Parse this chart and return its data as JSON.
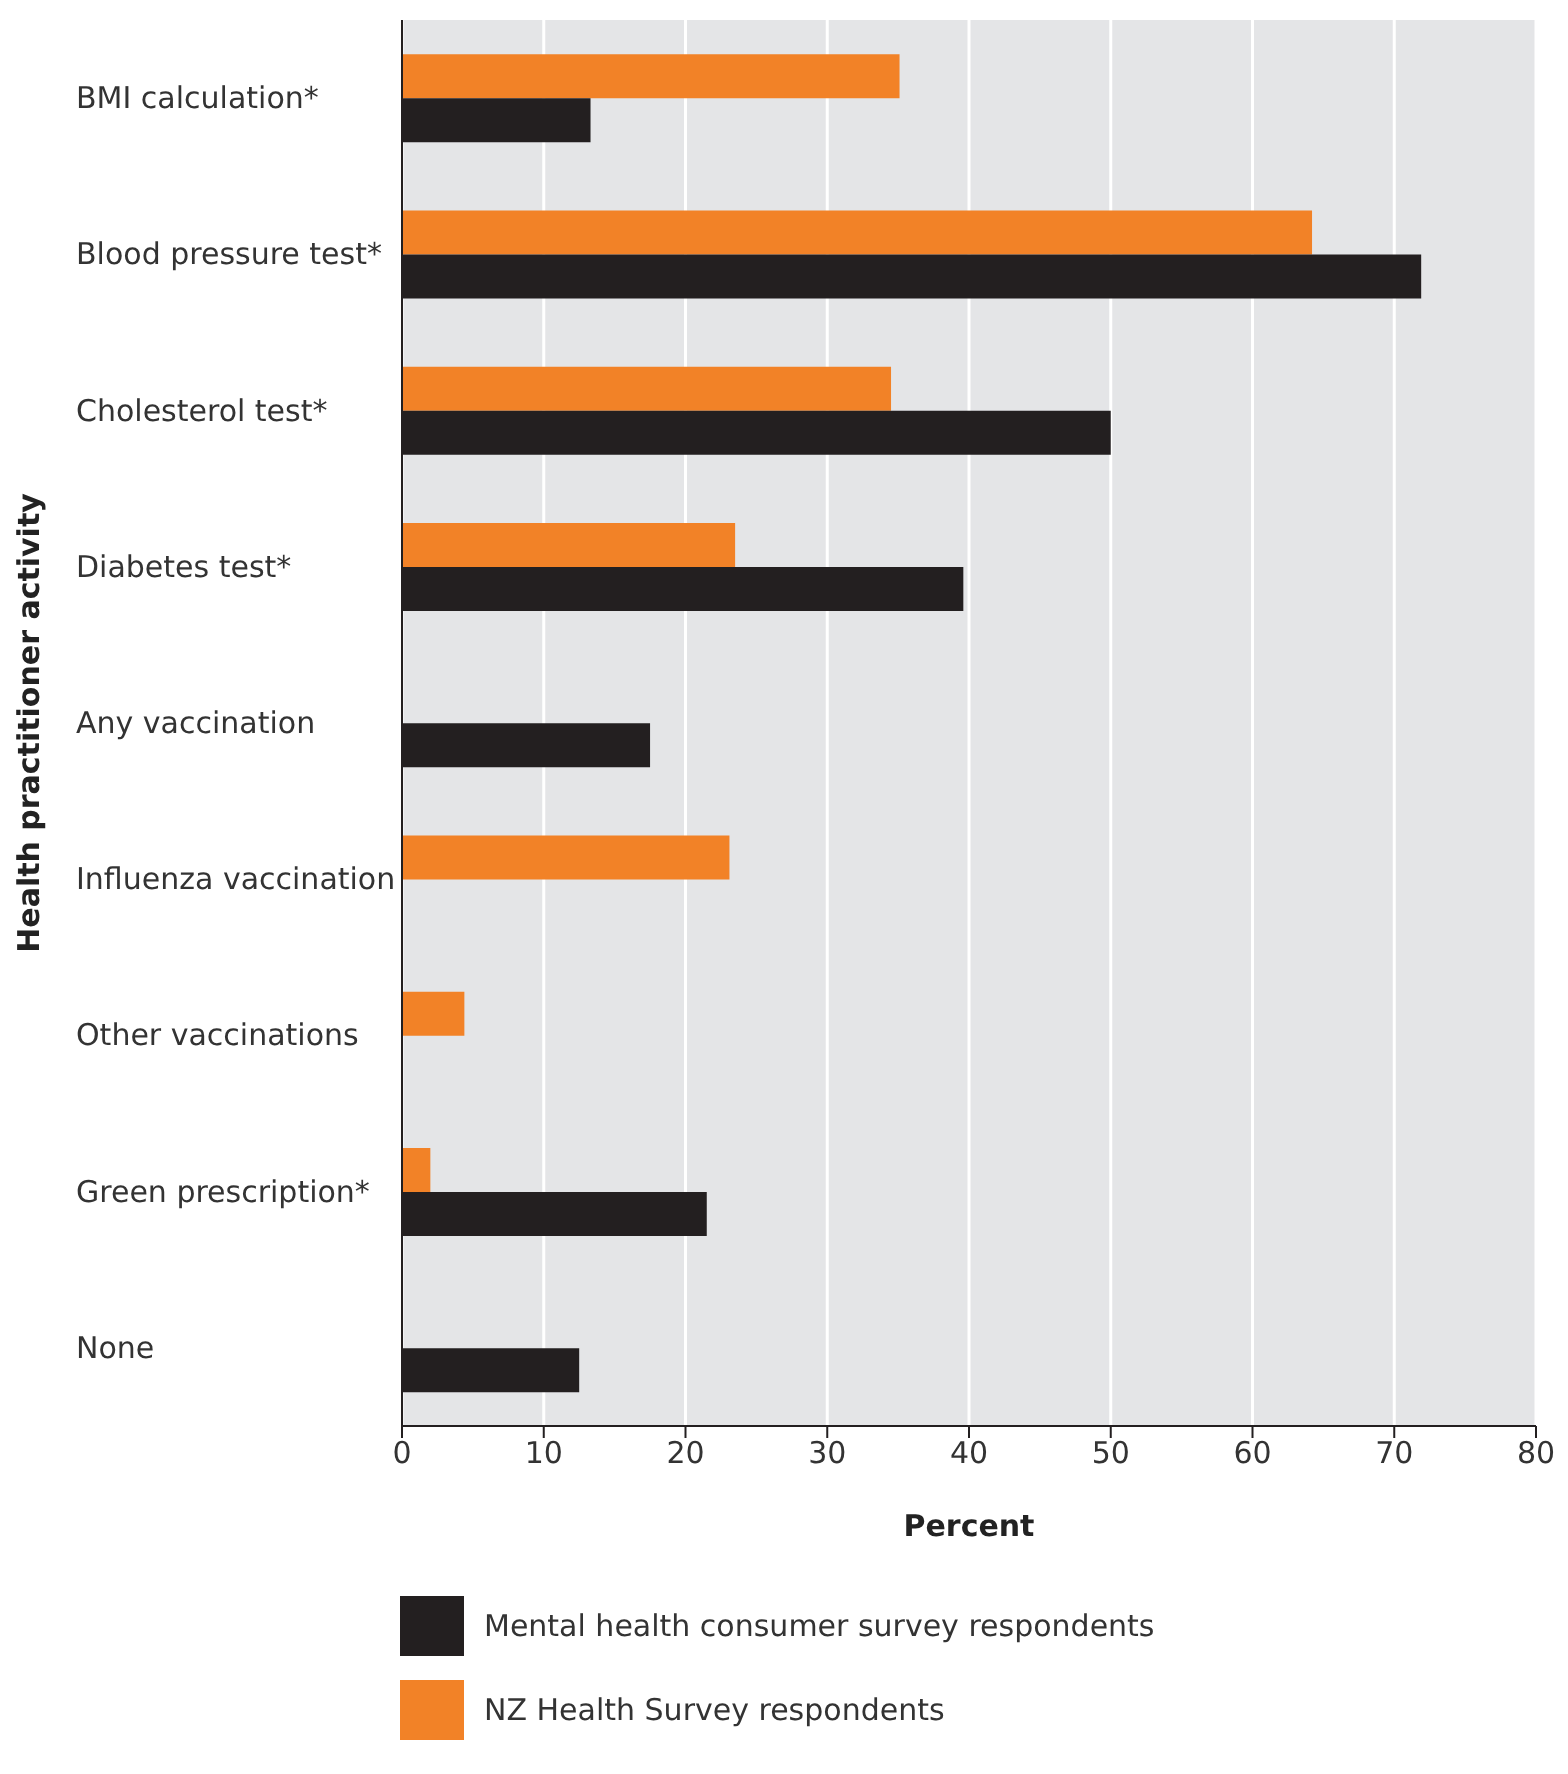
{
  "chart_data": {
    "type": "bar",
    "orientation": "horizontal",
    "xlabel": "Percent",
    "ylabel": "Health practitioner activity",
    "categories": [
      "BMI calculation*",
      "Blood pressure test*",
      "Cholesterol test*",
      "Diabetes test*",
      "Any vaccination",
      "Influenza vaccination",
      "Other vaccinations",
      "Green prescription*",
      "None"
    ],
    "series": [
      {
        "name": "Mental health consumer survey respondents",
        "color": "#231f20",
        "values": [
          13.3,
          71.9,
          50.0,
          39.6,
          17.5,
          null,
          null,
          21.5,
          12.5
        ]
      },
      {
        "name": "NZ Health Survey respondents",
        "color": "#f28227",
        "values": [
          35.1,
          64.2,
          34.5,
          23.5,
          null,
          23.1,
          4.4,
          2.0,
          null
        ]
      }
    ],
    "xlim": [
      0,
      80
    ],
    "xticks": [
      0,
      10,
      20,
      30,
      40,
      50,
      60,
      70,
      80
    ],
    "grid": "x",
    "legend": "bottom"
  }
}
